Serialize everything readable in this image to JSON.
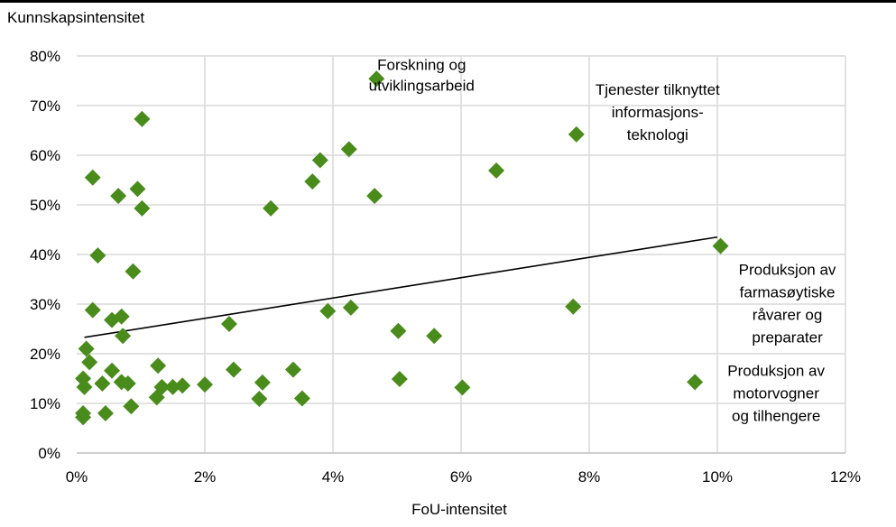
{
  "chart_data": {
    "type": "scatter",
    "ylabel": "Kunnskapsintensitet",
    "xlabel": "FoU-intensitet",
    "xlim": [
      0,
      0.12
    ],
    "ylim": [
      0,
      0.8
    ],
    "x_ticks": [
      "0%",
      "2%",
      "4%",
      "6%",
      "8%",
      "10%",
      "12%"
    ],
    "y_ticks": [
      "0%",
      "10%",
      "20%",
      "30%",
      "40%",
      "50%",
      "60%",
      "70%",
      "80%"
    ],
    "grid": true,
    "marker_color": "#4a8c1c",
    "points": [
      {
        "x": 0.001,
        "y": 0.08
      },
      {
        "x": 0.001,
        "y": 0.072
      },
      {
        "x": 0.001,
        "y": 0.15
      },
      {
        "x": 0.0012,
        "y": 0.133
      },
      {
        "x": 0.0015,
        "y": 0.21
      },
      {
        "x": 0.002,
        "y": 0.183
      },
      {
        "x": 0.0025,
        "y": 0.555
      },
      {
        "x": 0.0025,
        "y": 0.288
      },
      {
        "x": 0.0033,
        "y": 0.398
      },
      {
        "x": 0.004,
        "y": 0.14
      },
      {
        "x": 0.0045,
        "y": 0.08
      },
      {
        "x": 0.0055,
        "y": 0.268
      },
      {
        "x": 0.0055,
        "y": 0.166
      },
      {
        "x": 0.0065,
        "y": 0.518
      },
      {
        "x": 0.007,
        "y": 0.143
      },
      {
        "x": 0.007,
        "y": 0.275
      },
      {
        "x": 0.0072,
        "y": 0.236
      },
      {
        "x": 0.008,
        "y": 0.14
      },
      {
        "x": 0.0085,
        "y": 0.094
      },
      {
        "x": 0.0088,
        "y": 0.366
      },
      {
        "x": 0.0095,
        "y": 0.532
      },
      {
        "x": 0.0102,
        "y": 0.493
      },
      {
        "x": 0.0102,
        "y": 0.673
      },
      {
        "x": 0.0125,
        "y": 0.112
      },
      {
        "x": 0.0127,
        "y": 0.176
      },
      {
        "x": 0.0133,
        "y": 0.133
      },
      {
        "x": 0.015,
        "y": 0.133
      },
      {
        "x": 0.0165,
        "y": 0.136
      },
      {
        "x": 0.02,
        "y": 0.138
      },
      {
        "x": 0.0238,
        "y": 0.26
      },
      {
        "x": 0.0245,
        "y": 0.168
      },
      {
        "x": 0.0285,
        "y": 0.109
      },
      {
        "x": 0.029,
        "y": 0.142
      },
      {
        "x": 0.0303,
        "y": 0.493
      },
      {
        "x": 0.0338,
        "y": 0.168
      },
      {
        "x": 0.0352,
        "y": 0.11
      },
      {
        "x": 0.0368,
        "y": 0.547
      },
      {
        "x": 0.038,
        "y": 0.59
      },
      {
        "x": 0.0392,
        "y": 0.286
      },
      {
        "x": 0.0425,
        "y": 0.612
      },
      {
        "x": 0.0428,
        "y": 0.293
      },
      {
        "x": 0.0465,
        "y": 0.518
      },
      {
        "x": 0.0468,
        "y": 0.754
      },
      {
        "x": 0.0502,
        "y": 0.246
      },
      {
        "x": 0.0504,
        "y": 0.149
      },
      {
        "x": 0.0558,
        "y": 0.236
      },
      {
        "x": 0.0602,
        "y": 0.132
      },
      {
        "x": 0.0655,
        "y": 0.569
      },
      {
        "x": 0.0775,
        "y": 0.295
      },
      {
        "x": 0.078,
        "y": 0.642
      },
      {
        "x": 0.0965,
        "y": 0.143
      },
      {
        "x": 0.1005,
        "y": 0.417
      }
    ],
    "trendline": {
      "x": [
        0.0012,
        0.1
      ],
      "y": [
        0.233,
        0.435
      ]
    },
    "annotations": [
      {
        "lines": [
          "Forskning og",
          "utviklingsarbeid"
        ],
        "near_x": 0.0468,
        "near_y": 0.754,
        "anchor": "right"
      },
      {
        "lines": [
          "Tjenester tilknyttet",
          "informasjons-",
          "teknologi"
        ],
        "near_x": 0.078,
        "near_y": 0.642,
        "anchor": "above-right"
      },
      {
        "lines": [
          "Produksjon av",
          "farmasøytiske",
          "råvarer og",
          "preparater"
        ],
        "near_x": 0.1005,
        "near_y": 0.417,
        "anchor": "below-right"
      },
      {
        "lines": [
          "Produksjon av",
          "motorvogner",
          "og tilhengere"
        ],
        "near_x": 0.0965,
        "near_y": 0.143,
        "anchor": "right"
      }
    ]
  }
}
